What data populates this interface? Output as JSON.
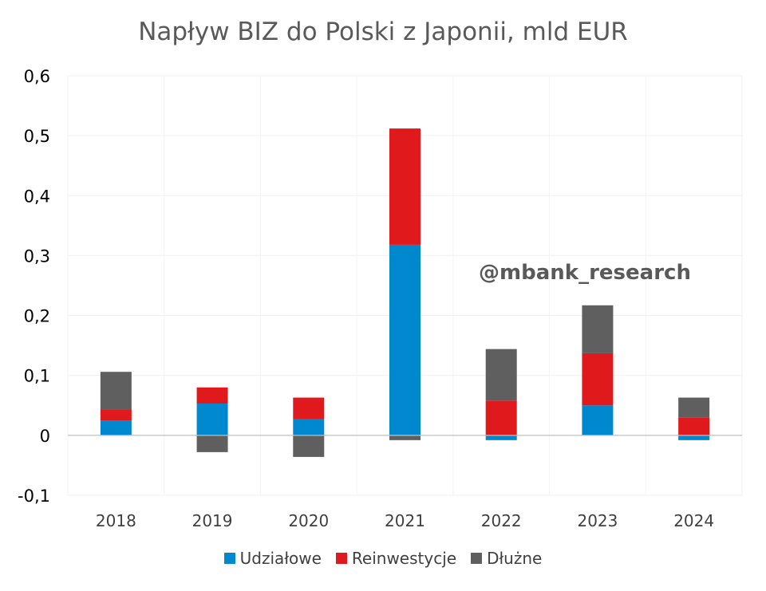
{
  "chart_data": {
    "type": "bar",
    "stacked": true,
    "title": "Napływ BIZ do Polski z Japonii, mld EUR",
    "categories": [
      "2018",
      "2019",
      "2020",
      "2021",
      "2022",
      "2023",
      "2024"
    ],
    "series": [
      {
        "name": "Udziałowe",
        "color": "#0088cf",
        "values": [
          0.025,
          0.053,
          0.027,
          0.318,
          -0.008,
          0.05,
          -0.008
        ]
      },
      {
        "name": "Reinwestycje",
        "color": "#e0191d",
        "values": [
          0.018,
          0.027,
          0.036,
          0.194,
          0.058,
          0.087,
          0.03
        ]
      },
      {
        "name": "Dłużne",
        "color": "#5f5f5f",
        "values": [
          0.063,
          -0.028,
          -0.036,
          -0.008,
          0.086,
          0.08,
          0.033
        ]
      }
    ],
    "ylim": [
      -0.1,
      0.6
    ],
    "yticks": [
      -0.1,
      0,
      0.1,
      0.2,
      0.3,
      0.4,
      0.5,
      0.6
    ],
    "ytick_labels": [
      "-0,1",
      "0",
      "0,1",
      "0,2",
      "0,3",
      "0,4",
      "0,5",
      "0,6"
    ],
    "grid": true,
    "legend_position": "bottom",
    "annotation": "@mbank_research"
  }
}
